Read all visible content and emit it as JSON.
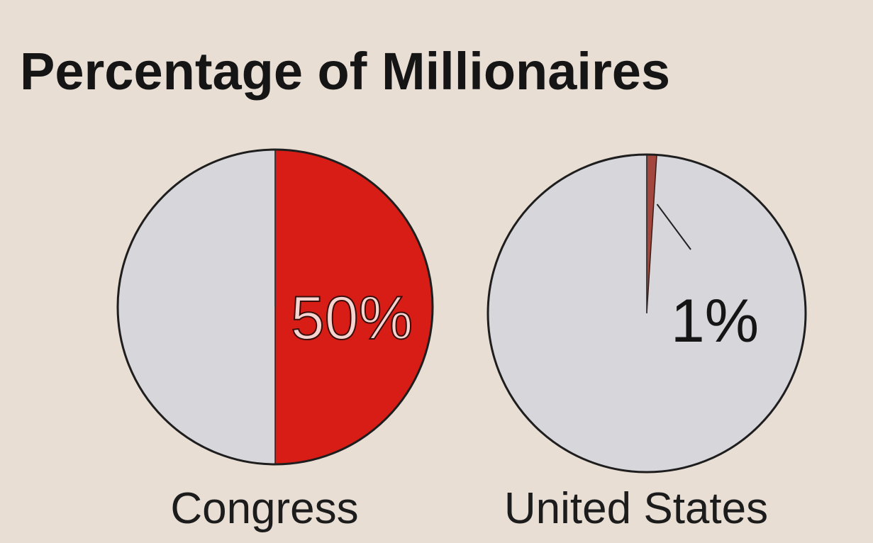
{
  "title": "Percentage of Millionaires",
  "chart_data": [
    {
      "type": "pie",
      "name": "Congress",
      "values": [
        50
      ],
      "value_labels": [
        "50%"
      ],
      "color": "#d81d17",
      "label_inside": true
    },
    {
      "type": "pie",
      "name": "United States",
      "values": [
        1
      ],
      "value_labels": [
        "1%"
      ],
      "color": "#a3463d",
      "label_inside": false
    }
  ]
}
